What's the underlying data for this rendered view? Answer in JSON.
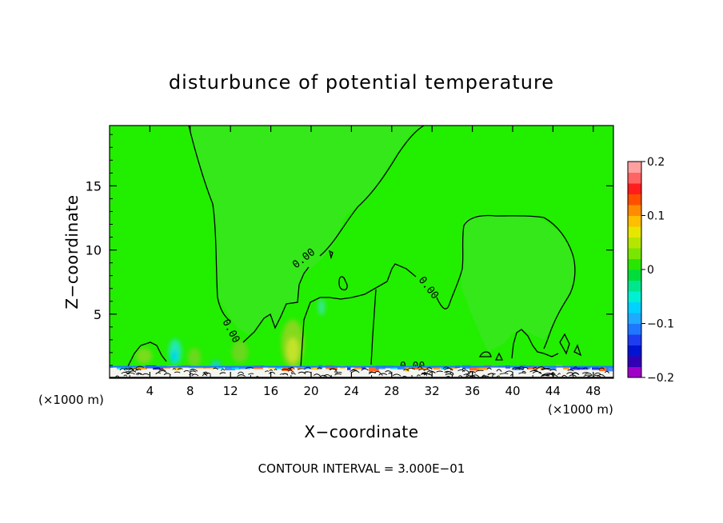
{
  "chart_data": {
    "type": "heatmap",
    "title": "disturbunce of potential temperature",
    "xlabel": "X−coordinate",
    "ylabel": "Z−coordinate",
    "x_unit_left": "(×1000 m)",
    "x_unit_right": "(×1000 m)",
    "xlim": [
      0,
      50
    ],
    "ylim": [
      0,
      19.7
    ],
    "x_ticks": [
      4,
      8,
      12,
      16,
      20,
      24,
      28,
      32,
      36,
      40,
      44,
      48
    ],
    "y_ticks": [
      5,
      10,
      15
    ],
    "contour_label": "0.00",
    "footer": "CONTOUR INTERVAL = 3.000E−01",
    "colorbar": {
      "min": -0.2,
      "max": 0.2,
      "tick_values": [
        -0.2,
        -0.1,
        0,
        0.1,
        0.2
      ],
      "tick_labels": [
        "−0.2",
        "−0.1",
        "0",
        "0.1",
        "0.2"
      ],
      "colors": [
        "#a000c8",
        "#3200b4",
        "#0014d2",
        "#1e3cf0",
        "#1e78ff",
        "#1eaaff",
        "#00d2ff",
        "#00f0d2",
        "#00e68c",
        "#00dc3c",
        "#28e600",
        "#78e600",
        "#b4e600",
        "#e6e600",
        "#ffbe00",
        "#ff8c00",
        "#ff5000",
        "#ff1e1e",
        "#ff6464",
        "#ffa0a0"
      ]
    },
    "background_value": 0.02,
    "background_color": "#22ee00",
    "contour_zero_x_km": [
      11,
      21,
      22,
      29,
      33,
      41,
      43
    ],
    "contour_zero_y_km": [
      19.7,
      19.7,
      10,
      8,
      12.7,
      2,
      2
    ]
  }
}
